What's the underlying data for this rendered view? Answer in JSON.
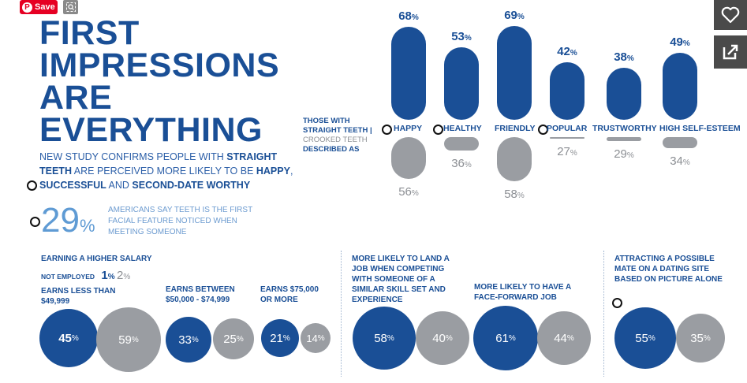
{
  "toolbar": {
    "save_label": "Save",
    "pin_logo": "P",
    "lens_icon": "lens-icon"
  },
  "side_buttons": {
    "heart_icon": "heart-icon",
    "share_icon": "share-icon"
  },
  "title": [
    "FIRST",
    "IMPRESSIONS",
    "ARE",
    "EVERYTHING"
  ],
  "subtitle": {
    "part1": "NEW STUDY CONFIRMS PEOPLE WITH ",
    "straight": "STRAIGHT TEETH",
    "part2": " ARE PERCEIVED MORE LIKELY TO BE ",
    "happy": "HAPPY",
    "part3": ", ",
    "successful": "SUCCESSFUL",
    "part4": " AND ",
    "second_date": "SECOND-DATE WORTHY"
  },
  "stat": {
    "value": "29",
    "pct": "%",
    "text": "AMERICANS SAY TEETH IS THE FIRST FACIAL FEATURE NOTICED WHEN MEETING SOMEONE"
  },
  "legend": {
    "line1": "THOSE WITH",
    "line2": "STRAIGHT TEETH |",
    "line3": "CROOKED TEETH",
    "line4": "DESCRIBED AS"
  },
  "chart_data": {
    "type": "bar",
    "categories": [
      "HAPPY",
      "HEALTHY",
      "FRIENDLY",
      "POPULAR",
      "TRUSTWORTHY",
      "HIGH SELF-ESTEEM"
    ],
    "series": [
      {
        "name": "STRAIGHT TEETH",
        "values": [
          68,
          53,
          69,
          42,
          38,
          49
        ]
      },
      {
        "name": "CROOKED TEETH",
        "values": [
          56,
          36,
          58,
          27,
          29,
          34
        ]
      }
    ],
    "unit": "%"
  },
  "bottom": {
    "salary": {
      "title": "EARNING A HIGHER SALARY",
      "not_employed_label": "NOT EMPLOYED",
      "not_employed_blue": "1",
      "not_employed_gray": "2",
      "groups": [
        {
          "label": "EARNS LESS THAN $49,999",
          "straight": "45",
          "crooked": "59"
        },
        {
          "label": "EARNS BETWEEN $50,000 - $74,999",
          "straight": "33",
          "crooked": "25"
        },
        {
          "label": "EARNS $75,000 OR MORE",
          "straight": "21",
          "crooked": "14"
        }
      ]
    },
    "job": {
      "title": "MORE LIKELY TO LAND A JOB WHEN COMPETING WITH SOMEONE OF A SIMILAR SKILL SET AND EXPERIENCE",
      "straight": "58",
      "crooked": "40"
    },
    "face_forward": {
      "title": "MORE LIKELY TO HAVE A FACE-FORWARD JOB",
      "straight": "61",
      "crooked": "44"
    },
    "dating": {
      "title": "ATTRACTING A POSSIBLE MATE ON A DATING SITE BASED ON PICTURE ALONE",
      "straight": "55",
      "crooked": "35"
    },
    "pct": "%"
  }
}
